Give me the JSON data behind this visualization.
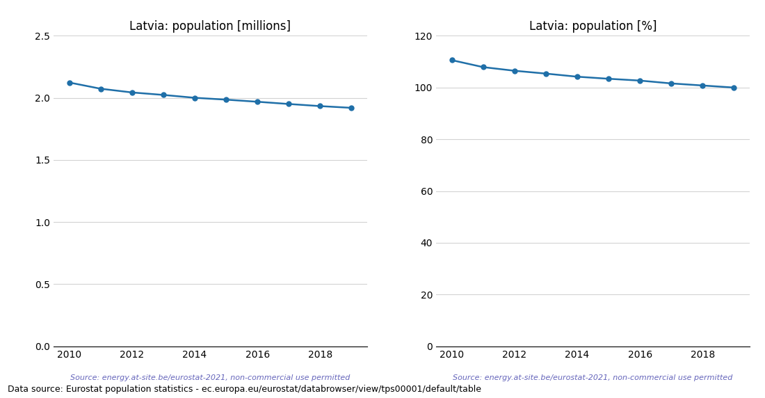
{
  "years": [
    2010,
    2011,
    2012,
    2013,
    2014,
    2015,
    2016,
    2017,
    2018,
    2019
  ],
  "population_millions": [
    2.124,
    2.074,
    2.044,
    2.024,
    2.001,
    1.986,
    1.969,
    1.951,
    1.934,
    1.92
  ],
  "population_pct": [
    110.6,
    107.9,
    106.5,
    105.4,
    104.2,
    103.4,
    102.7,
    101.6,
    100.8,
    100.0
  ],
  "title_millions": "Latvia: population [millions]",
  "title_pct": "Latvia: population [%]",
  "source_text": "Source: energy.at-site.be/eurostat-2021, non-commercial use permitted",
  "data_source_text": "Data source: Eurostat population statistics - ec.europa.eu/eurostat/databrowser/view/tps00001/default/table",
  "line_color": "#1f6fa8",
  "source_color": "#6666bb",
  "ylim_millions": [
    0.0,
    2.5
  ],
  "ylim_pct": [
    0,
    120
  ],
  "yticks_millions": [
    0.0,
    0.5,
    1.0,
    1.5,
    2.0,
    2.5
  ],
  "yticks_pct": [
    0,
    20,
    40,
    60,
    80,
    100,
    120
  ],
  "xticks": [
    2010,
    2012,
    2014,
    2016,
    2018
  ]
}
